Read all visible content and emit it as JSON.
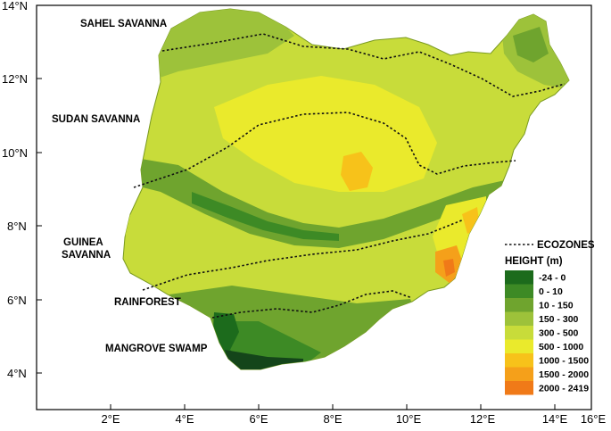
{
  "map": {
    "latitude_ticks": [
      "14°N",
      "12°N",
      "10°N",
      "8°N",
      "6°N",
      "4°N"
    ],
    "longitude_ticks": [
      "2°E",
      "4°E",
      "6°E",
      "8°E",
      "10°E",
      "12°E",
      "14°E",
      "16°E"
    ],
    "ecozones": [
      "SAHEL SAVANNA",
      "SUDAN SAVANNA",
      "GUINEA",
      "SAVANNA",
      "RAINFOREST",
      "MANGROVE SWAMP"
    ]
  },
  "legend": {
    "ecozones_label": "ECOZONES",
    "height_title": "HEIGHT (m)",
    "classes": [
      {
        "label": "-24 - 0",
        "color": "#1c6b1c"
      },
      {
        "label": "0 - 10",
        "color": "#3d8a25"
      },
      {
        "label": "10 - 150",
        "color": "#6fa42e"
      },
      {
        "label": "150 - 300",
        "color": "#9dc23a"
      },
      {
        "label": "300 - 500",
        "color": "#c8dc3a"
      },
      {
        "label": "500 - 1000",
        "color": "#eaea2c"
      },
      {
        "label": "1000 - 1500",
        "color": "#f7c21a"
      },
      {
        "label": "1500 - 2000",
        "color": "#f5a01a"
      },
      {
        "label": "2000 - 2419",
        "color": "#f07a18"
      }
    ]
  }
}
